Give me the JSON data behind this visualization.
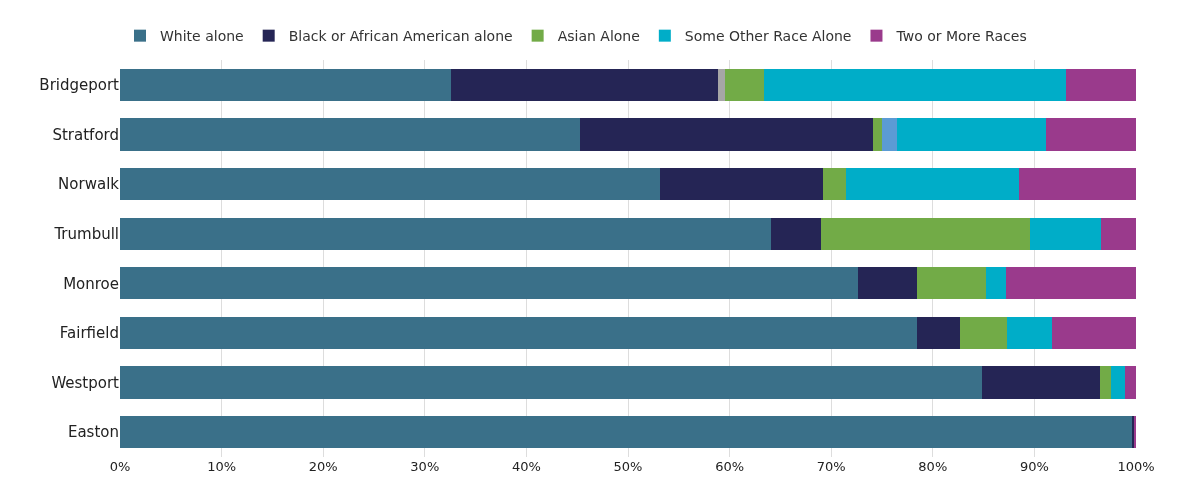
{
  "chart_data": {
    "type": "bar",
    "orientation": "horizontal",
    "stacked": true,
    "categories": [
      "Bridgeport",
      "Stratford",
      "Norwalk",
      "Trumbull",
      "Monroe",
      "Fairfield",
      "Westport",
      "Easton"
    ],
    "series": [
      {
        "name": "White alone",
        "color": "#3a7089",
        "values": [
          32.6,
          45.3,
          53.1,
          64.1,
          72.6,
          78.4,
          84.8,
          99.6
        ]
      },
      {
        "name": "Black or African American alone",
        "color": "#252555",
        "values": [
          26.3,
          28.8,
          16.1,
          4.9,
          5.8,
          4.3,
          11.7,
          0.2
        ]
      },
      {
        "color": "#a6a6a6",
        "values": [
          0.6,
          null,
          null,
          null,
          null,
          null,
          null,
          null
        ]
      },
      {
        "name": "Asian Alone",
        "color": "#72ab47",
        "values": [
          3.9,
          0.9,
          2.3,
          20.6,
          6.8,
          4.6,
          1.0,
          null
        ]
      },
      {
        "color": "#5b9bd5",
        "values": [
          null,
          1.5,
          null,
          null,
          null,
          null,
          null,
          null
        ]
      },
      {
        "name": "Some Other Race Alone",
        "color": "#00adc8",
        "values": [
          29.7,
          14.6,
          17.0,
          7.0,
          2.0,
          4.4,
          1.4,
          null
        ]
      },
      {
        "name": "Two or More Races",
        "color": "#9a3a8c",
        "values": [
          6.9,
          8.9,
          11.5,
          3.4,
          12.8,
          8.3,
          1.1,
          0.2
        ]
      }
    ],
    "xlim": [
      0,
      100
    ],
    "xticks": [
      {
        "value": 0,
        "label": "0%"
      },
      {
        "value": 10,
        "label": "10%"
      },
      {
        "value": 20,
        "label": "20%"
      },
      {
        "value": 30,
        "label": "30%"
      },
      {
        "value": 40,
        "label": "40%"
      },
      {
        "value": 50,
        "label": "50%"
      },
      {
        "value": 60,
        "label": "60%"
      },
      {
        "value": 70,
        "label": "70%"
      },
      {
        "value": 80,
        "label": "80%"
      },
      {
        "value": 90,
        "label": "90%"
      },
      {
        "value": 100,
        "label": "100%"
      }
    ],
    "grid": "x",
    "legend": "top"
  }
}
